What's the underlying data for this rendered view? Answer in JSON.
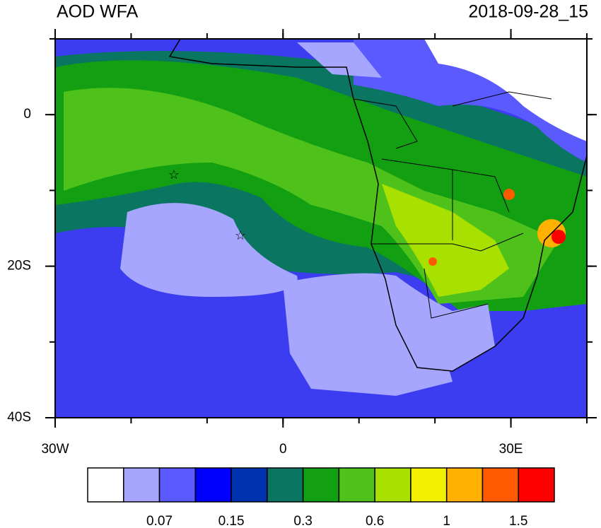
{
  "header": {
    "title": "AOD WFA",
    "time": "2018-09-28_15"
  },
  "map": {
    "lon_range": [
      -30,
      40
    ],
    "lat_range": [
      -40,
      10
    ],
    "lon_ticks": [
      {
        "value": -30,
        "label": "30W"
      },
      0,
      {
        "value": 30,
        "label": "30E"
      }
    ],
    "lat_ticks": [
      0,
      {
        "value": -20,
        "label": "20S"
      },
      {
        "value": -40,
        "label": "40S"
      }
    ]
  },
  "colorbar": {
    "colors": [
      "#ffffff",
      "#a6a6ff",
      "#5a5aff",
      "#0000ff",
      "#0033b0",
      "#0a7560",
      "#12a012",
      "#4ec21a",
      "#a8e000",
      "#f0f000",
      "#ffb000",
      "#ff5a00",
      "#ff0000"
    ],
    "labels": [
      "0.07",
      "0.15",
      "0.3",
      "0.6",
      "1",
      "1.5"
    ]
  }
}
